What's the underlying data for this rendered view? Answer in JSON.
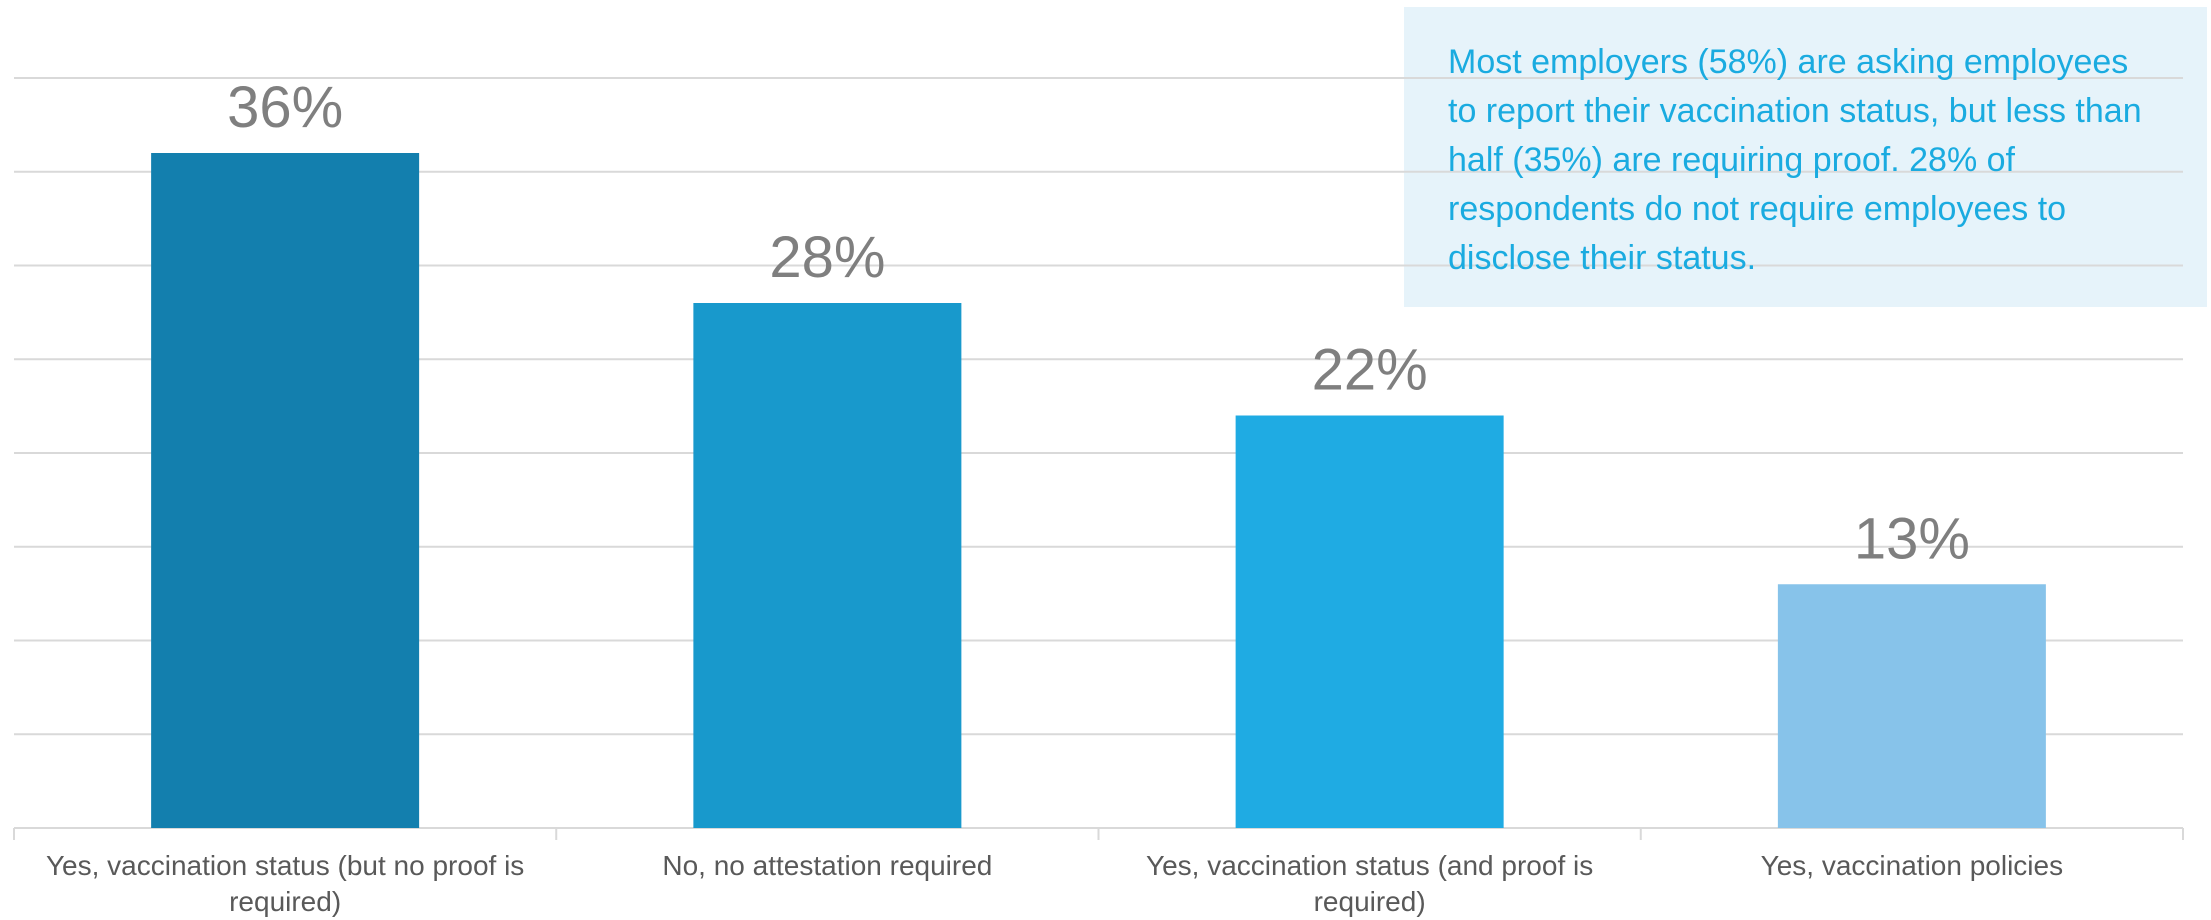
{
  "chart_data": {
    "type": "bar",
    "categories": [
      "Yes, vaccination status (but no proof is required)",
      "No, no attestation required",
      "Yes, vaccination status (and proof is required)",
      "Yes, vaccination policies"
    ],
    "values": [
      36,
      28,
      22,
      13
    ],
    "value_labels": [
      "36%",
      "28%",
      "22%",
      "13%"
    ],
    "colors": [
      "#137fae",
      "#1899cc",
      "#1fabe3",
      "#87c3ea"
    ],
    "ylim": [
      0,
      40
    ],
    "yticks": [
      0,
      5,
      10,
      15,
      20,
      25,
      30,
      35,
      40
    ],
    "grid": true,
    "annotation": [
      "Most employers (58%) are asking employees",
      "to report their vaccination status, but less than",
      "half (35%) are requiring proof.  28% of",
      "respondents do not require employees to",
      "disclose their status."
    ]
  }
}
